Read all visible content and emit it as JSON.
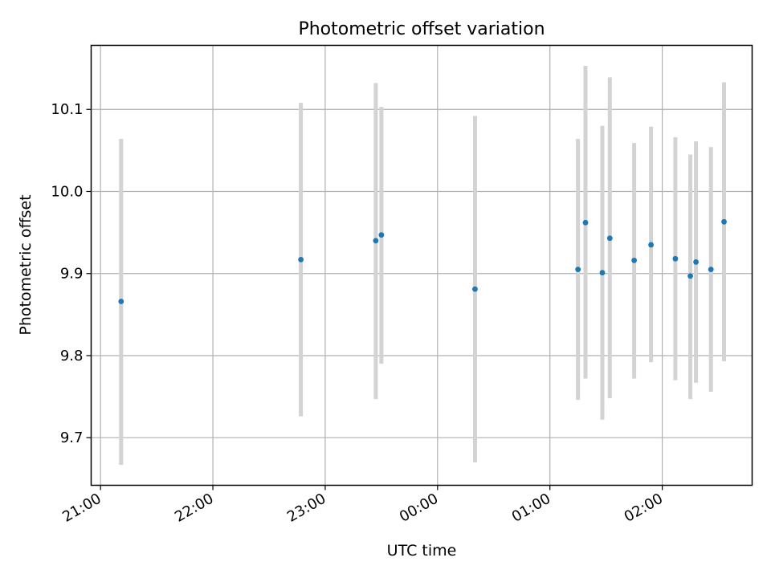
{
  "chart_data": {
    "type": "scatter",
    "title": "Photometric offset variation",
    "xlabel": "UTC time",
    "ylabel": "Photometric offset",
    "x_axis_kind": "time",
    "xlim": [
      "20:55",
      "02:48"
    ],
    "ylim": [
      9.642,
      10.178
    ],
    "x_ticks": [
      "21:00",
      "22:00",
      "23:00",
      "00:00",
      "01:00",
      "02:00"
    ],
    "y_ticks": [
      "9.7",
      "9.8",
      "9.9",
      "10.0",
      "10.1"
    ],
    "grid": true,
    "points": [
      {
        "x": "21:11",
        "y": 9.866,
        "ylow": 9.667,
        "yhigh": 10.064
      },
      {
        "x": "22:47",
        "y": 9.917,
        "ylow": 9.726,
        "yhigh": 10.108
      },
      {
        "x": "23:27",
        "y": 9.94,
        "ylow": 9.747,
        "yhigh": 10.132
      },
      {
        "x": "23:30",
        "y": 9.947,
        "ylow": 9.79,
        "yhigh": 10.103
      },
      {
        "x": "00:20",
        "y": 9.881,
        "ylow": 9.67,
        "yhigh": 10.092
      },
      {
        "x": "01:15",
        "y": 9.905,
        "ylow": 9.746,
        "yhigh": 10.064
      },
      {
        "x": "01:19",
        "y": 9.962,
        "ylow": 9.772,
        "yhigh": 10.153
      },
      {
        "x": "01:28",
        "y": 9.901,
        "ylow": 9.722,
        "yhigh": 10.08
      },
      {
        "x": "01:32",
        "y": 9.943,
        "ylow": 9.748,
        "yhigh": 10.139
      },
      {
        "x": "01:45",
        "y": 9.916,
        "ylow": 9.772,
        "yhigh": 10.059
      },
      {
        "x": "01:54",
        "y": 9.935,
        "ylow": 9.792,
        "yhigh": 10.079
      },
      {
        "x": "02:07",
        "y": 9.918,
        "ylow": 9.77,
        "yhigh": 10.066
      },
      {
        "x": "02:15",
        "y": 9.897,
        "ylow": 9.747,
        "yhigh": 10.045
      },
      {
        "x": "02:18",
        "y": 9.914,
        "ylow": 9.767,
        "yhigh": 10.061
      },
      {
        "x": "02:26",
        "y": 9.905,
        "ylow": 9.756,
        "yhigh": 10.054
      },
      {
        "x": "02:33",
        "y": 9.963,
        "ylow": 9.793,
        "yhigh": 10.133
      }
    ],
    "colors": {
      "point": "#1f77b4",
      "errorbar": "#d3d3d3",
      "grid": "#b0b0b0",
      "axes": "#000000"
    }
  }
}
